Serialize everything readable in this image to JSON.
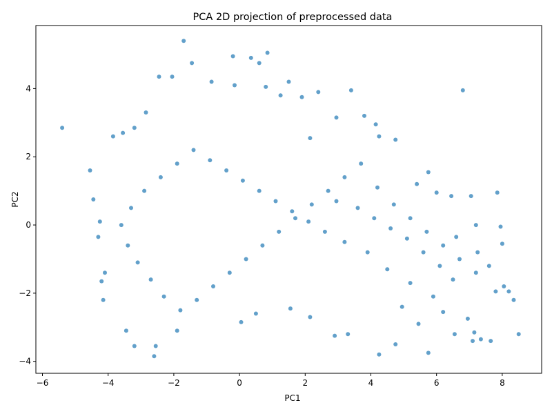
{
  "chart_data": {
    "type": "scatter",
    "title": "PCA 2D projection of preprocessed data",
    "xlabel": "PC1",
    "ylabel": "PC2",
    "xlim": [
      -6.2,
      9.2
    ],
    "ylim": [
      -4.35,
      5.85
    ],
    "xticks": [
      -6,
      -4,
      -2,
      0,
      2,
      4,
      6,
      8
    ],
    "yticks": [
      -4,
      -2,
      0,
      2,
      4
    ],
    "grid": false,
    "legend": "none",
    "marker_color": "#1f77b4",
    "marker_alpha": 0.7,
    "series": [
      {
        "points": [
          [
            -5.4,
            2.85
          ],
          [
            -1.7,
            5.4
          ],
          [
            -0.2,
            4.95
          ],
          [
            0.35,
            4.9
          ],
          [
            0.85,
            5.05
          ],
          [
            0.6,
            4.75
          ],
          [
            -1.45,
            4.75
          ],
          [
            -0.15,
            4.1
          ],
          [
            1.5,
            4.2
          ],
          [
            2.4,
            3.9
          ],
          [
            3.4,
            3.95
          ],
          [
            6.8,
            3.95
          ],
          [
            -2.45,
            4.35
          ],
          [
            -2.05,
            4.35
          ],
          [
            0.8,
            4.05
          ],
          [
            -0.85,
            4.2
          ],
          [
            -2.85,
            3.3
          ],
          [
            -3.55,
            2.7
          ],
          [
            -3.2,
            2.85
          ],
          [
            -3.85,
            2.6
          ],
          [
            -4.55,
            1.6
          ],
          [
            -4.45,
            0.75
          ],
          [
            -4.25,
            0.1
          ],
          [
            -4.3,
            -0.35
          ],
          [
            -4.1,
            -1.4
          ],
          [
            -4.2,
            -1.65
          ],
          [
            -4.15,
            -2.2
          ],
          [
            -3.45,
            -3.1
          ],
          [
            -3.2,
            -3.55
          ],
          [
            -2.55,
            -3.55
          ],
          [
            -2.6,
            -3.85
          ],
          [
            -1.9,
            -3.1
          ],
          [
            0.05,
            -2.85
          ],
          [
            0.5,
            -2.6
          ],
          [
            1.55,
            -2.45
          ],
          [
            2.15,
            -2.7
          ],
          [
            2.9,
            -3.25
          ],
          [
            3.3,
            -3.2
          ],
          [
            4.25,
            -3.8
          ],
          [
            4.75,
            -3.5
          ],
          [
            5.75,
            -3.75
          ],
          [
            5.45,
            -2.9
          ],
          [
            6.55,
            -3.2
          ],
          [
            7.1,
            -3.4
          ],
          [
            7.35,
            -3.35
          ],
          [
            7.65,
            -3.4
          ],
          [
            8.5,
            -3.2
          ],
          [
            8.35,
            -2.2
          ],
          [
            8.2,
            -1.95
          ],
          [
            8.05,
            -1.8
          ],
          [
            7.8,
            -1.95
          ],
          [
            8.0,
            -0.55
          ],
          [
            7.95,
            -0.05
          ],
          [
            7.85,
            0.95
          ],
          [
            7.2,
            0.0
          ],
          [
            7.05,
            0.85
          ],
          [
            6.45,
            0.85
          ],
          [
            5.75,
            1.55
          ],
          [
            5.4,
            1.2
          ],
          [
            4.75,
            2.5
          ],
          [
            4.25,
            2.6
          ],
          [
            4.15,
            2.95
          ],
          [
            3.8,
            3.2
          ],
          [
            2.95,
            3.15
          ],
          [
            1.9,
            3.75
          ],
          [
            1.25,
            3.8
          ],
          [
            2.15,
            2.55
          ],
          [
            6.0,
            0.95
          ],
          [
            6.6,
            -0.35
          ],
          [
            7.25,
            -0.8
          ],
          [
            6.95,
            -2.75
          ],
          [
            7.15,
            -3.15
          ],
          [
            6.2,
            -2.55
          ],
          [
            4.95,
            -2.4
          ],
          [
            2.95,
            0.7
          ],
          [
            3.6,
            0.5
          ],
          [
            4.1,
            0.2
          ],
          [
            4.6,
            -0.1
          ],
          [
            5.1,
            -0.4
          ],
          [
            5.6,
            -0.8
          ],
          [
            6.1,
            -1.2
          ],
          [
            6.5,
            -1.6
          ],
          [
            5.9,
            -2.1
          ],
          [
            5.2,
            -1.7
          ],
          [
            4.5,
            -1.3
          ],
          [
            3.9,
            -0.8
          ],
          [
            3.2,
            -0.5
          ],
          [
            2.6,
            -0.2
          ],
          [
            2.1,
            0.1
          ],
          [
            1.6,
            0.4
          ],
          [
            1.1,
            0.7
          ],
          [
            0.6,
            1.0
          ],
          [
            0.1,
            1.3
          ],
          [
            -0.4,
            1.6
          ],
          [
            -0.9,
            1.9
          ],
          [
            -1.4,
            2.2
          ],
          [
            -1.9,
            1.8
          ],
          [
            -2.4,
            1.4
          ],
          [
            -2.9,
            1.0
          ],
          [
            -3.3,
            0.5
          ],
          [
            -3.6,
            0.0
          ],
          [
            -3.4,
            -0.6
          ],
          [
            -3.1,
            -1.1
          ],
          [
            -2.7,
            -1.6
          ],
          [
            -2.3,
            -2.1
          ],
          [
            -1.8,
            -2.5
          ],
          [
            -1.3,
            -2.2
          ],
          [
            -0.8,
            -1.8
          ],
          [
            -0.3,
            -1.4
          ],
          [
            0.2,
            -1.0
          ],
          [
            0.7,
            -0.6
          ],
          [
            1.2,
            -0.2
          ],
          [
            1.7,
            0.2
          ],
          [
            2.2,
            0.6
          ],
          [
            2.7,
            1.0
          ],
          [
            3.2,
            1.4
          ],
          [
            3.7,
            1.8
          ],
          [
            4.2,
            1.1
          ],
          [
            4.7,
            0.6
          ],
          [
            5.2,
            0.2
          ],
          [
            5.7,
            -0.2
          ],
          [
            6.2,
            -0.6
          ],
          [
            6.7,
            -1.0
          ],
          [
            7.2,
            -1.4
          ],
          [
            7.6,
            -1.2
          ]
        ]
      }
    ]
  }
}
